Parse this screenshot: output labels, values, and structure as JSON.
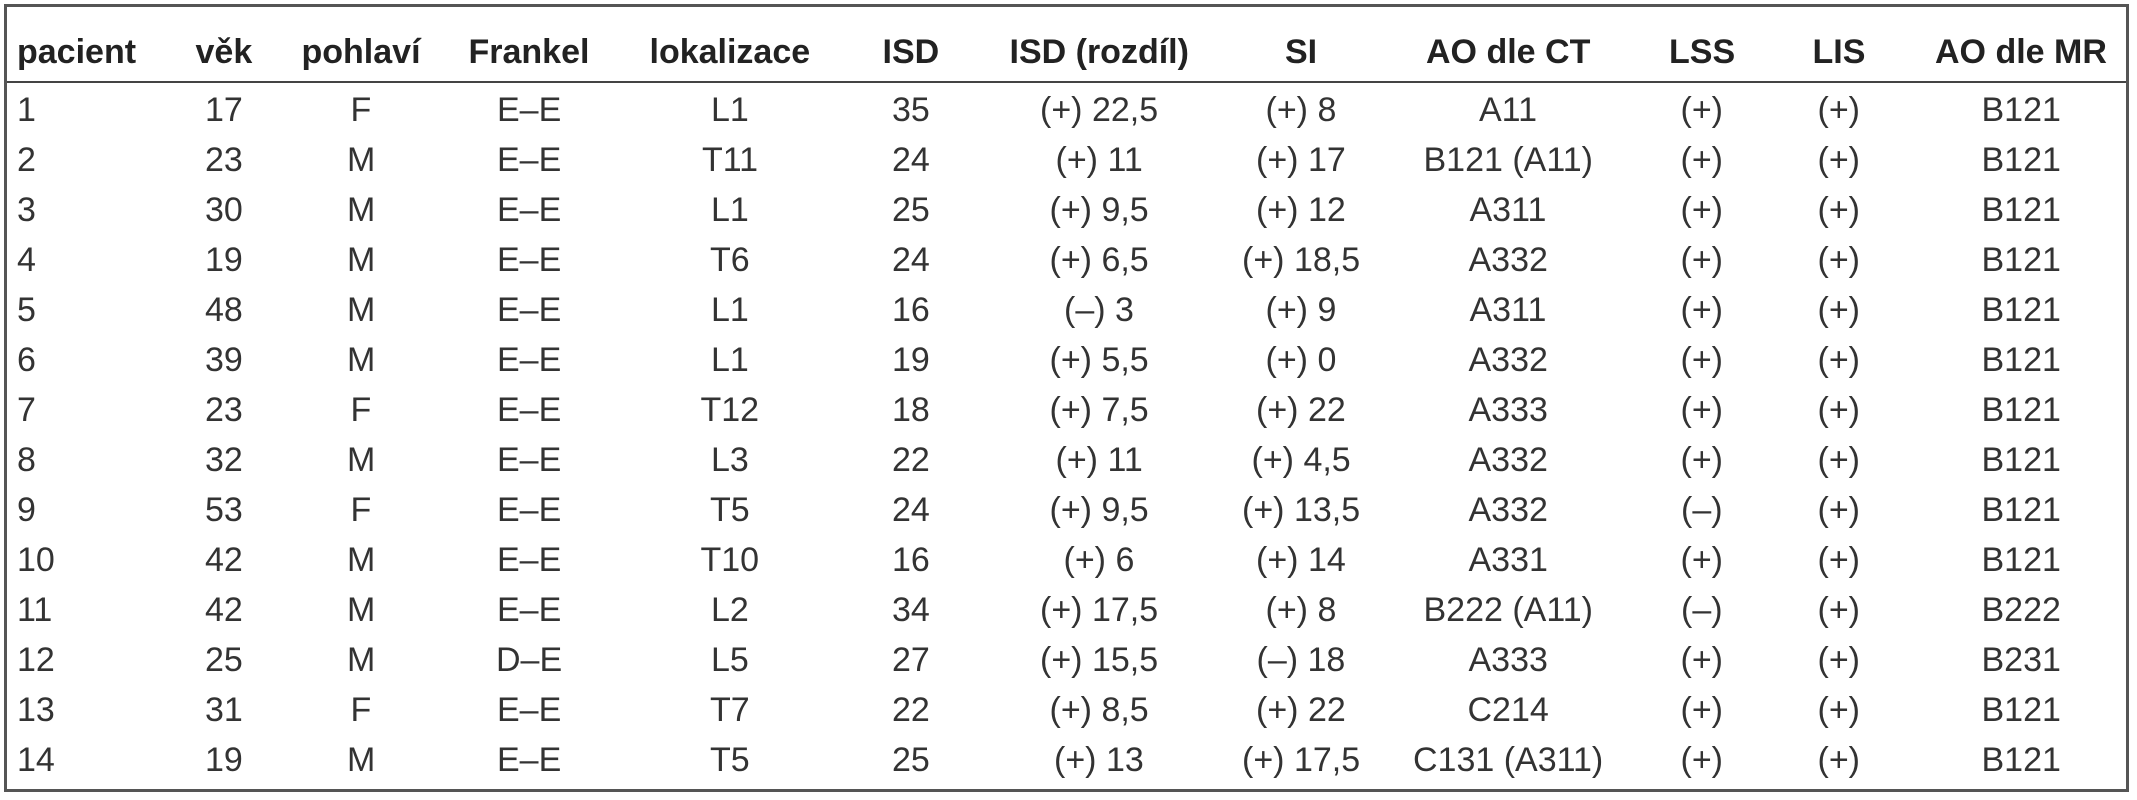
{
  "table": {
    "header": [
      "pacient",
      "věk",
      "pohlaví",
      "Frankel",
      "lokalizace",
      "ISD",
      "ISD (rozdíl)",
      "SI",
      "AO dle CT",
      "LSS",
      "LIS",
      "AO dle MR"
    ],
    "rows": [
      [
        "1",
        "17",
        "F",
        "E–E",
        "L1",
        "35",
        "(+) 22,5",
        "(+) 8",
        "A11",
        "(+)",
        "(+)",
        "B121"
      ],
      [
        "2",
        "23",
        "M",
        "E–E",
        "T11",
        "24",
        "(+) 11",
        "(+) 17",
        "B121 (A11)",
        "(+)",
        "(+)",
        "B121"
      ],
      [
        "3",
        "30",
        "M",
        "E–E",
        "L1",
        "25",
        "(+) 9,5",
        "(+) 12",
        "A311",
        "(+)",
        "(+)",
        "B121"
      ],
      [
        "4",
        "19",
        "M",
        "E–E",
        "T6",
        "24",
        "(+) 6,5",
        "(+) 18,5",
        "A332",
        "(+)",
        "(+)",
        "B121"
      ],
      [
        "5",
        "48",
        "M",
        "E–E",
        "L1",
        "16",
        "(–) 3",
        "(+) 9",
        "A311",
        "(+)",
        "(+)",
        "B121"
      ],
      [
        "6",
        "39",
        "M",
        "E–E",
        "L1",
        "19",
        "(+) 5,5",
        "(+) 0",
        "A332",
        "(+)",
        "(+)",
        "B121"
      ],
      [
        "7",
        "23",
        "F",
        "E–E",
        "T12",
        "18",
        "(+) 7,5",
        "(+) 22",
        "A333",
        "(+)",
        "(+)",
        "B121"
      ],
      [
        "8",
        "32",
        "M",
        "E–E",
        "L3",
        "22",
        "(+) 11",
        "(+) 4,5",
        "A332",
        "(+)",
        "(+)",
        "B121"
      ],
      [
        "9",
        "53",
        "F",
        "E–E",
        "T5",
        "24",
        "(+) 9,5",
        "(+) 13,5",
        "A332",
        "(–)",
        "(+)",
        "B121"
      ],
      [
        "10",
        "42",
        "M",
        "E–E",
        "T10",
        "16",
        "(+) 6",
        "(+) 14",
        "A331",
        "(+)",
        "(+)",
        "B121"
      ],
      [
        "11",
        "42",
        "M",
        "E–E",
        "L2",
        "34",
        "(+) 17,5",
        "(+) 8",
        "B222 (A11)",
        "(–)",
        "(+)",
        "B222"
      ],
      [
        "12",
        "25",
        "M",
        "D–E",
        "L5",
        "27",
        "(+) 15,5",
        "(–) 18",
        "A333",
        "(+)",
        "(+)",
        "B231"
      ],
      [
        "13",
        "31",
        "F",
        "E–E",
        "T7",
        "22",
        "(+) 8,5",
        "(+) 22",
        "C214",
        "(+)",
        "(+)",
        "B121"
      ],
      [
        "14",
        "19",
        "M",
        "E–E",
        "T5",
        "25",
        "(+) 13",
        "(+) 17,5",
        "C131 (A311)",
        "(+)",
        "(+)",
        "B121"
      ]
    ]
  }
}
